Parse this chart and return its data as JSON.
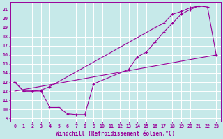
{
  "xlabel": "Windchill (Refroidissement éolien,°C)",
  "bg_color": "#c6e9e9",
  "line_color": "#990099",
  "grid_color": "#ffffff",
  "xlim": [
    -0.5,
    23.5
  ],
  "ylim": [
    8.6,
    21.8
  ],
  "xticks": [
    0,
    1,
    2,
    3,
    4,
    5,
    6,
    7,
    8,
    9,
    10,
    11,
    12,
    13,
    14,
    15,
    16,
    17,
    18,
    19,
    20,
    21,
    22,
    23
  ],
  "yticks": [
    9,
    10,
    11,
    12,
    13,
    14,
    15,
    16,
    17,
    18,
    19,
    20,
    21
  ],
  "line1_x": [
    0,
    1,
    2,
    3,
    4,
    5,
    6,
    7,
    8,
    9,
    13,
    14,
    15,
    16,
    17,
    18,
    19,
    20,
    21,
    22,
    23
  ],
  "line1_y": [
    13,
    12,
    12,
    12,
    10.2,
    10.2,
    9.5,
    9.4,
    9.4,
    12.8,
    14.4,
    15.8,
    16.3,
    17.4,
    18.5,
    19.5,
    20.5,
    21.0,
    21.4,
    21.3,
    16.0
  ],
  "line2_x": [
    0,
    1,
    2,
    3,
    4,
    16,
    17,
    18,
    19,
    20,
    21
  ],
  "line2_y": [
    13,
    12,
    12,
    12.1,
    12.5,
    19.0,
    19.5,
    20.5,
    20.8,
    21.2,
    21.4
  ],
  "line3_x": [
    0,
    23
  ],
  "line3_y": [
    12.0,
    16.0
  ]
}
